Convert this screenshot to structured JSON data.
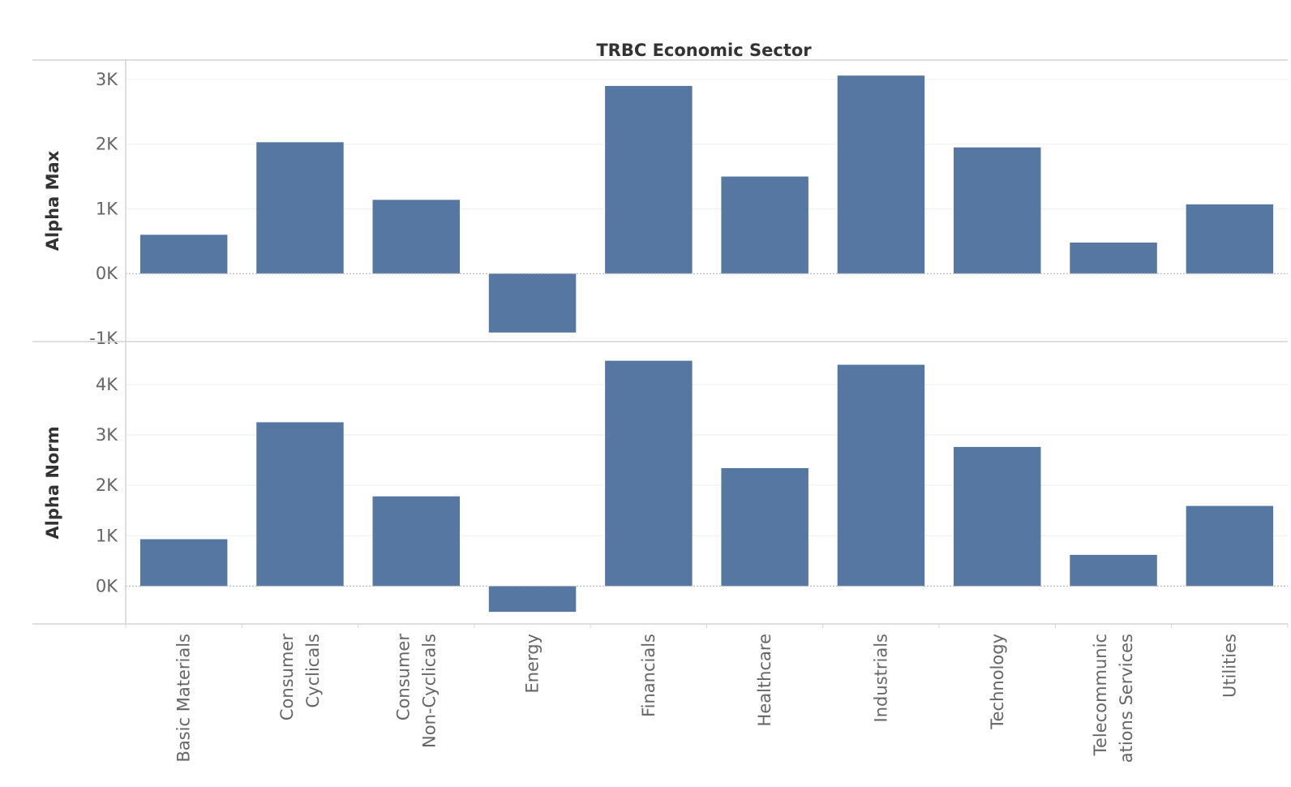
{
  "chart_data": {
    "type": "bar",
    "column_title": "TRBC Economic Sector",
    "categories": [
      "Basic Materials",
      "Consumer Cyclicals",
      "Consumer Non-Cyclicals",
      "Energy",
      "Financials",
      "Healthcare",
      "Industrials",
      "Technology",
      "Telecommunications Services",
      "Utilities"
    ],
    "category_label_lines": [
      [
        "Basic Materials"
      ],
      [
        "Consumer",
        "Cyclicals"
      ],
      [
        "Consumer",
        "Non-Cyclicals"
      ],
      [
        "Energy"
      ],
      [
        "Financials"
      ],
      [
        "Healthcare"
      ],
      [
        "Industrials"
      ],
      [
        "Technology"
      ],
      [
        "Telecommunic",
        "ations Services"
      ],
      [
        "Utilities"
      ]
    ],
    "series": [
      {
        "name": "Alpha Max",
        "values": [
          600,
          2030,
          1140,
          -910,
          2900,
          1500,
          3060,
          1950,
          480,
          1070
        ],
        "ylim": [
          -1050,
          3300
        ],
        "ticks": [
          -1000,
          0,
          1000,
          2000,
          3000
        ],
        "tick_labels": [
          "-1K",
          "0K",
          "1K",
          "2K",
          "3K"
        ]
      },
      {
        "name": "Alpha Norm",
        "values": [
          930,
          3250,
          1780,
          -510,
          4470,
          2340,
          4390,
          2760,
          620,
          1590
        ],
        "ylim": [
          -750,
          4850
        ],
        "ticks": [
          0,
          1000,
          2000,
          3000,
          4000
        ],
        "tick_labels": [
          "0K",
          "1K",
          "2K",
          "3K",
          "4K"
        ]
      }
    ],
    "bar_color": "#5677a2",
    "grid": true,
    "legend": "none"
  }
}
